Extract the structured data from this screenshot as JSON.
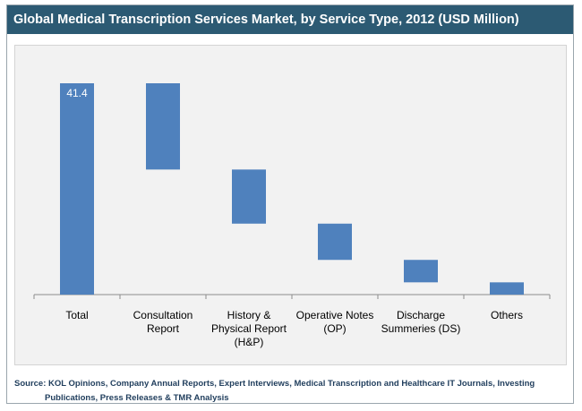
{
  "title": "Global Medical Transcription Services Market, by Service Type, 2012 (USD Million)",
  "source": {
    "line1": "Source: KOL Opinions, Company Annual Reports, Expert Interviews, Medical Transcription and Healthcare IT Journals, Investing",
    "line2": "Publications, Press Releases & TMR Analysis"
  },
  "colors": {
    "title_bg": "#2c5a73",
    "bar": "#4f81bd",
    "plot_bg": "#f2f2f2",
    "source_text": "#1f3d5c"
  },
  "chart_data": {
    "type": "bar",
    "subtype": "waterfall",
    "categories": [
      [
        "Total"
      ],
      [
        "Consultation",
        "Report"
      ],
      [
        "History &",
        "Physical Report",
        "(H&P)"
      ],
      [
        "Operative Notes",
        "(OP)"
      ],
      [
        "Discharge",
        "Summeries (DS)"
      ],
      [
        "Others"
      ]
    ],
    "values": [
      41.4,
      16.9,
      10.6,
      7.1,
      4.4,
      2.4
    ],
    "bar_ranges": [
      [
        0,
        41.4
      ],
      [
        24.5,
        41.4
      ],
      [
        13.9,
        24.5
      ],
      [
        6.8,
        13.9
      ],
      [
        2.4,
        6.8
      ],
      [
        0,
        2.4
      ]
    ],
    "data_labels": [
      "41.4",
      "",
      "",
      "",
      "",
      ""
    ],
    "ylim": [
      0,
      41.4
    ],
    "grid": false,
    "legend": "none"
  }
}
